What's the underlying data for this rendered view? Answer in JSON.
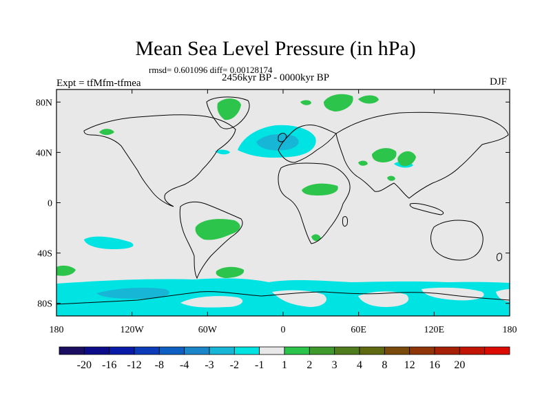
{
  "title": "Mean Sea Level Pressure (in hPa)",
  "stats": "rmsd= 0.601096 diff= 0.00128174",
  "period": "2456kyr BP - 0000kyr BP",
  "experiment": "Expt = tfMfm-tfmea",
  "season": "DJF",
  "map": {
    "projection": "cylindrical-equidistant",
    "lon_range": [
      -180,
      180
    ],
    "lat_range": [
      -90,
      90
    ],
    "lat_ticks": [
      {
        "value": 80,
        "label": "80N"
      },
      {
        "value": 40,
        "label": "40N"
      },
      {
        "value": 0,
        "label": "0"
      },
      {
        "value": -40,
        "label": "40S"
      },
      {
        "value": -80,
        "label": "80S"
      }
    ],
    "lon_ticks": [
      {
        "value": -180,
        "label": "180"
      },
      {
        "value": -120,
        "label": "120W"
      },
      {
        "value": -60,
        "label": "60W"
      },
      {
        "value": 0,
        "label": "0"
      },
      {
        "value": 60,
        "label": "60E"
      },
      {
        "value": 120,
        "label": "120E"
      },
      {
        "value": 180,
        "label": "180"
      }
    ],
    "background_color": "#e8e8e8",
    "coast_color": "#000000"
  },
  "colorbar": {
    "colors": [
      "#1b0d62",
      "#0c0c8a",
      "#0a1aa8",
      "#0b3bb8",
      "#0d5fc3",
      "#1a86c9",
      "#17b6d6",
      "#00e3e3",
      "#e8e8e8",
      "#2cc44a",
      "#3f9a2c",
      "#4f7c1c",
      "#5f6a10",
      "#7a4a0a",
      "#8f3507",
      "#a52004",
      "#c11402",
      "#dc0a00"
    ],
    "labels": [
      "-20",
      "-16",
      "-12",
      "-8",
      "-4",
      "-3",
      "-2",
      "-1",
      "1",
      "2",
      "3",
      "4",
      "8",
      "12",
      "16",
      "20"
    ]
  },
  "regions": [
    {
      "name": "antarctic-ocean-band",
      "level": "-2 to -1",
      "color": "#00e3e3"
    },
    {
      "name": "antarctic-low-core",
      "level": "-3 to -2",
      "color": "#17b6d6"
    },
    {
      "name": "north-atlantic-low",
      "level": "-2 to -1",
      "color": "#00e3e3"
    },
    {
      "name": "north-atlantic-low-core",
      "level": "-3 to -2",
      "color": "#17b6d6"
    },
    {
      "name": "south-pacific-low",
      "level": "-2 to -1",
      "color": "#00e3e3"
    },
    {
      "name": "greenland-high",
      "level": "1 to 2",
      "color": "#2cc44a"
    },
    {
      "name": "arctic-siberia-high",
      "level": "1 to 2",
      "color": "#2cc44a"
    },
    {
      "name": "alaska-high",
      "level": "1 to 2",
      "color": "#2cc44a"
    },
    {
      "name": "west-asia-high",
      "level": "1 to 2",
      "color": "#2cc44a"
    },
    {
      "name": "china-high",
      "level": "1 to 2",
      "color": "#2cc44a"
    },
    {
      "name": "north-africa-high",
      "level": "1 to 2",
      "color": "#2cc44a"
    },
    {
      "name": "brazil-high",
      "level": "1 to 2",
      "color": "#2cc44a"
    },
    {
      "name": "southern-africa-high",
      "level": "1 to 2",
      "color": "#2cc44a"
    },
    {
      "name": "south-pacific-west-high",
      "level": "1 to 2",
      "color": "#2cc44a"
    },
    {
      "name": "south-atlantic-high",
      "level": "1 to 2",
      "color": "#2cc44a"
    }
  ]
}
